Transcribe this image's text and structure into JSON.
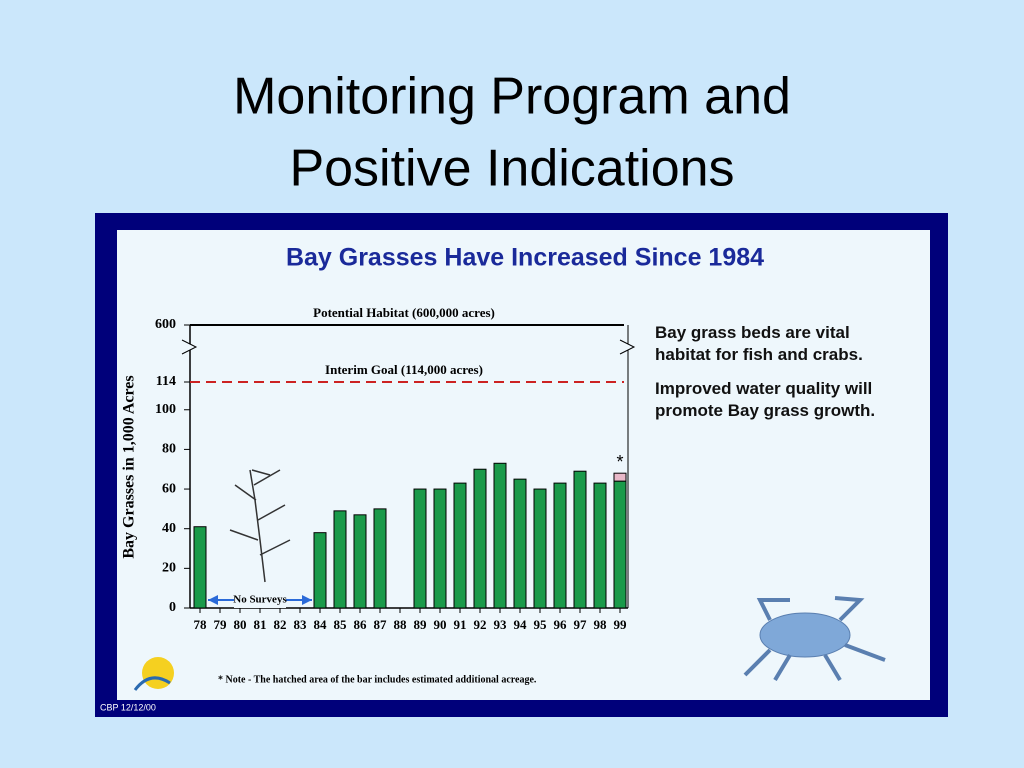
{
  "slide_title": [
    "Monitoring Program and",
    "Positive Indications"
  ],
  "chart_data": {
    "type": "bar",
    "title": "Bay Grasses Have Increased Since 1984",
    "y_label": "Bay Grasses in 1,000 Acres",
    "categories": [
      "78",
      "79",
      "80",
      "81",
      "82",
      "83",
      "84",
      "85",
      "86",
      "87",
      "88",
      "89",
      "90",
      "91",
      "92",
      "93",
      "94",
      "95",
      "96",
      "97",
      "98",
      "99"
    ],
    "values": [
      41,
      null,
      null,
      null,
      null,
      null,
      38,
      49,
      47,
      50,
      null,
      60,
      60,
      63,
      70,
      73,
      65,
      60,
      63,
      69,
      63,
      64
    ],
    "estimated_values": [
      null,
      null,
      null,
      null,
      null,
      null,
      null,
      null,
      null,
      null,
      null,
      null,
      null,
      null,
      null,
      null,
      null,
      null,
      null,
      null,
      null,
      4
    ],
    "estimated_marker": "*",
    "color": "#1a9a4a",
    "estimated_color": "#e8b8c8",
    "ylim": [
      0,
      600
    ],
    "yticks": [
      0,
      20,
      40,
      60,
      80,
      100,
      114,
      600
    ],
    "broken_axis": true,
    "reference_lines": [
      {
        "value": 600,
        "label": "Potential Habitat (600,000 acres)",
        "color": "#000000",
        "style": "solid"
      },
      {
        "value": 114,
        "label": "Interim Goal (114,000 acres)",
        "color": "#cc2222",
        "style": "dashed"
      }
    ],
    "span_note": "No Surveys",
    "side_text": [
      "Bay grass beds are vital habitat for fish and crabs.",
      "Improved water quality will promote Bay grass growth."
    ],
    "footnote": "* Note -  The hatched area of the bar includes estimated additional acreage.",
    "credit": "CBP 12/12/00"
  }
}
